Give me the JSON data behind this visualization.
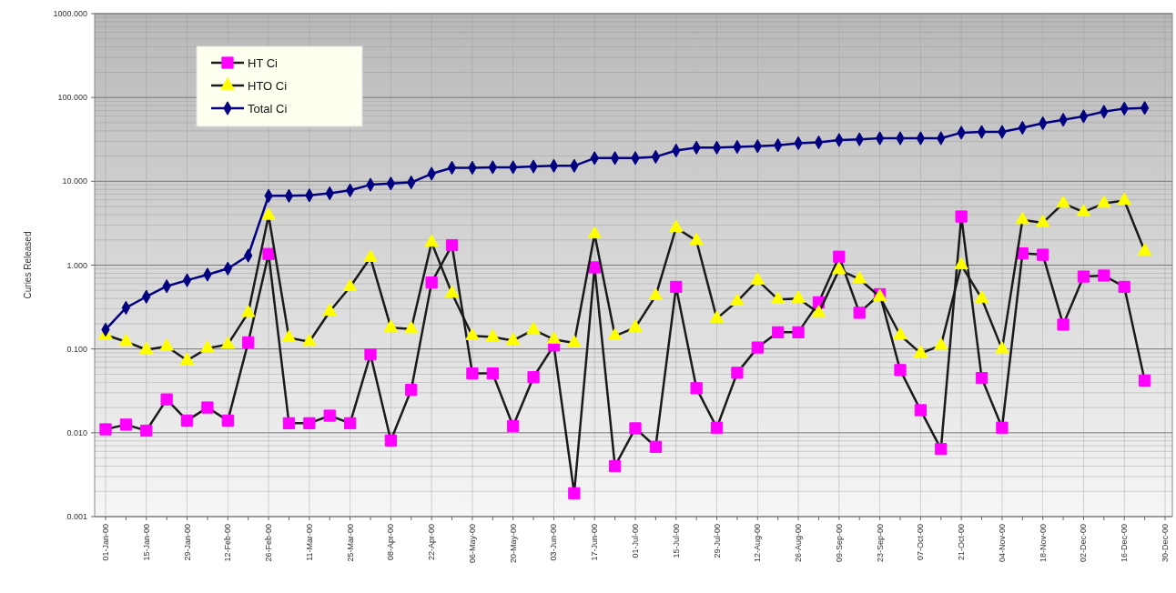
{
  "chart_data": {
    "type": "line",
    "ylabel": "Curies Released",
    "categories": [
      "01-Jan-00",
      null,
      "15-Jan-00",
      null,
      "29-Jan-00",
      null,
      "12-Feb-00",
      null,
      "26-Feb-00",
      null,
      "11-Mar-00",
      null,
      "25-Mar-00",
      null,
      "08-Apr-00",
      null,
      "22-Apr-00",
      null,
      "06-May-00",
      null,
      "20-May-00",
      null,
      "03-Jun-00",
      null,
      "17-Jun-00",
      null,
      "01-Jul-00",
      null,
      "15-Jul-00",
      null,
      "29-Jul-00",
      null,
      "12-Aug-00",
      null,
      "26-Aug-00",
      null,
      "09-Sep-00",
      null,
      "23-Sep-00",
      null,
      "07-Oct-00",
      null,
      "21-Oct-00",
      null,
      "04-Nov-00",
      null,
      "18-Nov-00",
      null,
      "02-Dec-00",
      null,
      "16-Dec-00",
      null,
      "30-Dec-00"
    ],
    "series": [
      {
        "name": "HT Ci",
        "color": "#ff00ff",
        "marker": "square",
        "values": [
          0.011,
          0.0125,
          0.0106,
          0.025,
          0.014,
          0.02,
          0.014,
          0.12,
          1.36,
          0.013,
          0.013,
          0.016,
          0.013,
          0.086,
          0.0081,
          0.0325,
          0.62,
          1.73,
          0.051,
          0.051,
          0.012,
          0.046,
          0.11,
          0.0019,
          0.94,
          0.004,
          0.0113,
          0.0068,
          0.55,
          0.034,
          0.0115,
          0.052,
          0.104,
          0.158,
          0.158,
          0.36,
          1.26,
          0.27,
          0.45,
          0.056,
          0.0186,
          0.0064,
          3.8,
          0.045,
          0.0115,
          1.38,
          1.33,
          0.195,
          0.73,
          0.75,
          0.55,
          0.042,
          null
        ]
      },
      {
        "name": "HTO Ci",
        "color": "#ffff00",
        "marker": "triangle",
        "values": [
          0.147,
          0.122,
          0.098,
          0.107,
          0.073,
          0.102,
          0.113,
          0.27,
          3.9,
          0.136,
          0.122,
          0.28,
          0.55,
          1.23,
          0.18,
          0.173,
          1.86,
          0.46,
          0.143,
          0.139,
          0.126,
          0.169,
          0.13,
          0.118,
          2.34,
          0.143,
          0.18,
          0.43,
          2.79,
          1.95,
          0.231,
          0.37,
          0.66,
          0.39,
          0.4,
          0.27,
          0.88,
          0.68,
          0.42,
          0.146,
          0.089,
          0.11,
          1.0,
          0.4,
          0.0995,
          3.47,
          3.2,
          5.45,
          4.3,
          5.45,
          5.9,
          1.47,
          null
        ]
      },
      {
        "name": "Total Ci",
        "color": "#000080",
        "marker": "diamond",
        "values": [
          0.17,
          0.31,
          0.42,
          0.56,
          0.66,
          0.77,
          0.91,
          1.3,
          6.7,
          6.7,
          6.8,
          7.2,
          7.8,
          9.1,
          9.4,
          9.7,
          12.3,
          14.5,
          14.5,
          14.7,
          14.7,
          15.0,
          15.3,
          15.3,
          18.9,
          18.9,
          18.9,
          19.6,
          23.3,
          25.2,
          25.2,
          25.7,
          26.2,
          26.9,
          28.5,
          29.1,
          31.1,
          31.7,
          32.6,
          32.6,
          32.6,
          32.6,
          38,
          38.8,
          38.8,
          43.5,
          49.2,
          54.2,
          59.6,
          67.6,
          73.7,
          75,
          null
        ]
      }
    ],
    "log": "y",
    "ylim": [
      0.001,
      1000
    ],
    "yticks": [
      {
        "value": 0.001,
        "label": "0.001"
      },
      {
        "value": 0.01,
        "label": "0.010"
      },
      {
        "value": 0.1,
        "label": "0.100"
      },
      {
        "value": 1,
        "label": "1.000"
      },
      {
        "value": 10,
        "label": "10.000"
      },
      {
        "value": 100,
        "label": "100.000"
      },
      {
        "value": 1000,
        "label": "1000.000"
      }
    ],
    "grid": true,
    "legend": "top left"
  }
}
